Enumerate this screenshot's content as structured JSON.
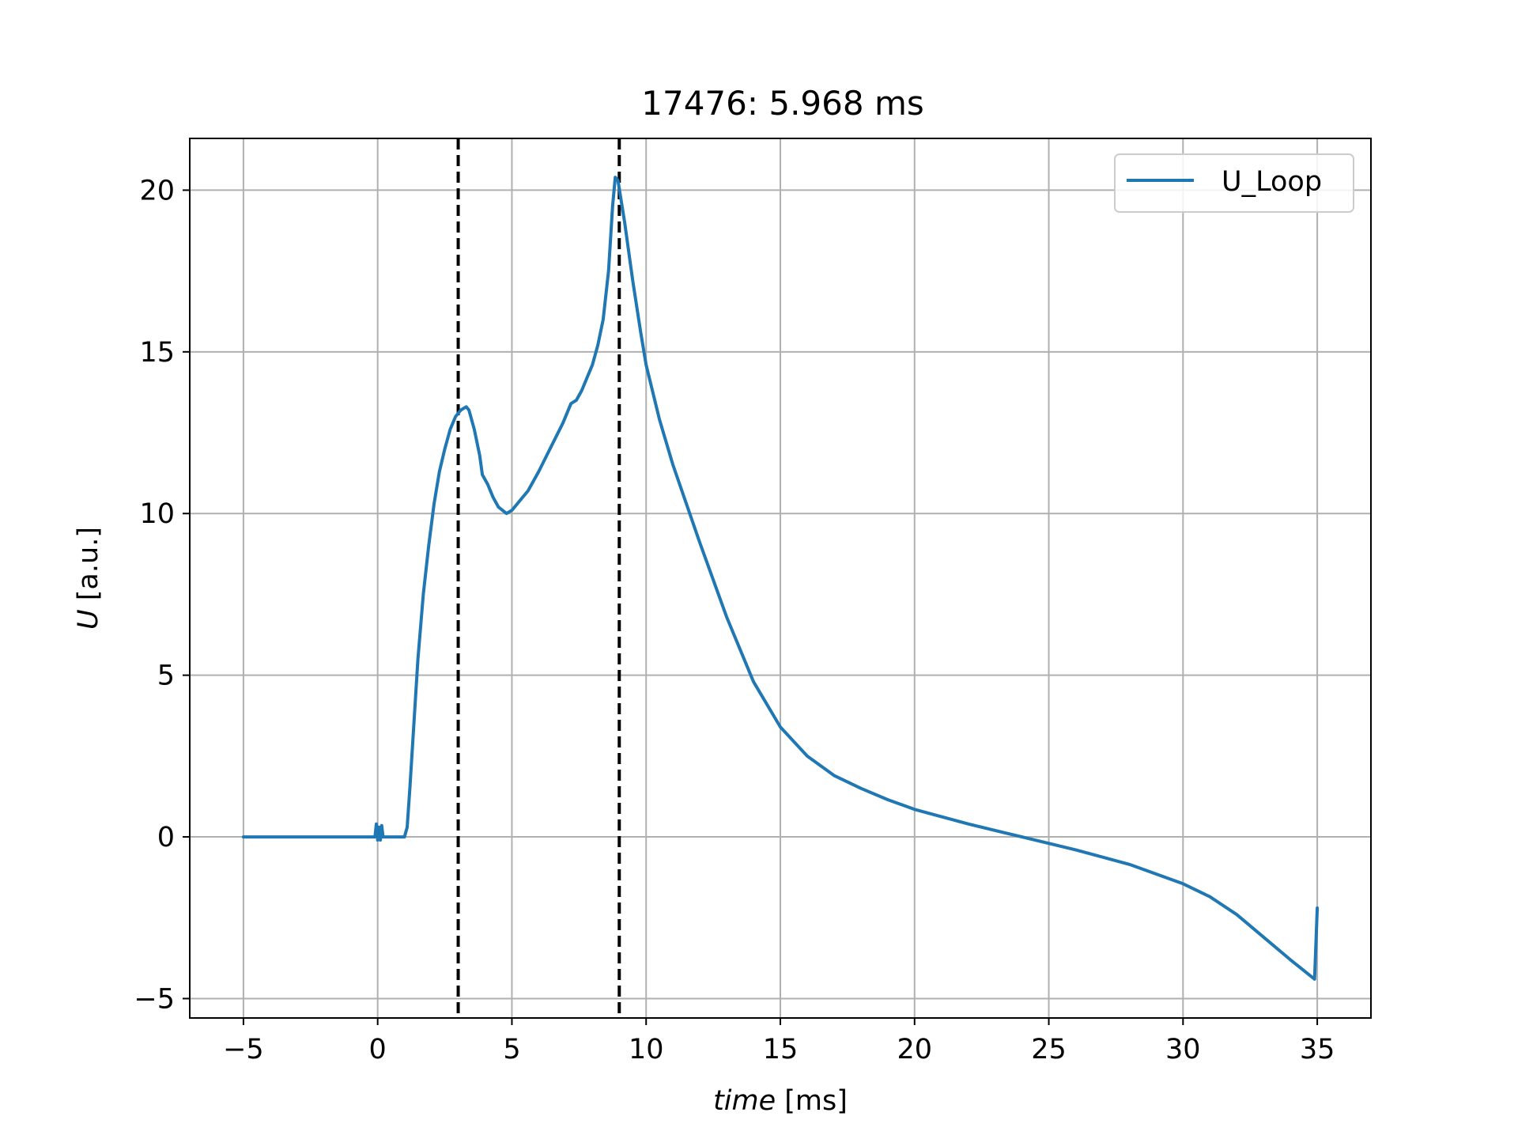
{
  "chart_data": {
    "type": "line",
    "title": "17476: 5.968 ms",
    "xlabel_italic": "time",
    "xlabel_unit": "[ms]",
    "ylabel_italic": "U",
    "ylabel_unit": "[a.u.]",
    "xlim": [
      -7,
      37
    ],
    "ylim": [
      -5.6,
      21.6
    ],
    "x_ticks": [
      -5,
      0,
      5,
      10,
      15,
      20,
      25,
      30,
      35
    ],
    "x_tick_labels": [
      "−5",
      "0",
      "5",
      "10",
      "15",
      "20",
      "25",
      "30",
      "35"
    ],
    "y_ticks": [
      -5,
      0,
      5,
      10,
      15,
      20
    ],
    "y_tick_labels": [
      "−5",
      "0",
      "5",
      "10",
      "15",
      "20"
    ],
    "grid": true,
    "legend_position": "top-right",
    "vlines": [
      3.0,
      9.0
    ],
    "series": [
      {
        "name": "U_Loop",
        "color": "#1f77b4",
        "points": [
          [
            -5,
            0
          ],
          [
            -1,
            0
          ],
          [
            -0.1,
            0
          ],
          [
            -0.05,
            0.4
          ],
          [
            0,
            -0.1
          ],
          [
            0.05,
            0.3
          ],
          [
            0.1,
            -0.1
          ],
          [
            0.15,
            0.35
          ],
          [
            0.2,
            0
          ],
          [
            0.5,
            0
          ],
          [
            1.0,
            0
          ],
          [
            1.1,
            0.3
          ],
          [
            1.2,
            1.5
          ],
          [
            1.35,
            3.5
          ],
          [
            1.5,
            5.5
          ],
          [
            1.7,
            7.5
          ],
          [
            1.9,
            9.0
          ],
          [
            2.1,
            10.3
          ],
          [
            2.3,
            11.3
          ],
          [
            2.5,
            12.0
          ],
          [
            2.7,
            12.6
          ],
          [
            2.9,
            13.0
          ],
          [
            3.1,
            13.2
          ],
          [
            3.3,
            13.3
          ],
          [
            3.4,
            13.2
          ],
          [
            3.6,
            12.6
          ],
          [
            3.8,
            11.8
          ],
          [
            3.9,
            11.2
          ],
          [
            4.1,
            10.9
          ],
          [
            4.3,
            10.5
          ],
          [
            4.5,
            10.2
          ],
          [
            4.8,
            10.0
          ],
          [
            5.0,
            10.1
          ],
          [
            5.3,
            10.4
          ],
          [
            5.6,
            10.7
          ],
          [
            5.8,
            11.0
          ],
          [
            6.0,
            11.3
          ],
          [
            6.3,
            11.8
          ],
          [
            6.6,
            12.3
          ],
          [
            6.9,
            12.8
          ],
          [
            7.2,
            13.4
          ],
          [
            7.4,
            13.5
          ],
          [
            7.6,
            13.8
          ],
          [
            7.8,
            14.2
          ],
          [
            8.0,
            14.6
          ],
          [
            8.2,
            15.2
          ],
          [
            8.4,
            16.0
          ],
          [
            8.6,
            17.5
          ],
          [
            8.75,
            19.5
          ],
          [
            8.85,
            20.4
          ],
          [
            8.95,
            20.3
          ],
          [
            9.2,
            19.0
          ],
          [
            9.5,
            17.2
          ],
          [
            9.8,
            15.6
          ],
          [
            10.0,
            14.6
          ],
          [
            10.5,
            12.9
          ],
          [
            11.0,
            11.5
          ],
          [
            12.0,
            9.1
          ],
          [
            13.0,
            6.8
          ],
          [
            14.0,
            4.8
          ],
          [
            15.0,
            3.4
          ],
          [
            16.0,
            2.5
          ],
          [
            17.0,
            1.9
          ],
          [
            18.0,
            1.5
          ],
          [
            19.0,
            1.15
          ],
          [
            20.0,
            0.85
          ],
          [
            22.0,
            0.4
          ],
          [
            24.0,
            0.0
          ],
          [
            26.0,
            -0.4
          ],
          [
            28.0,
            -0.85
          ],
          [
            30.0,
            -1.45
          ],
          [
            31.0,
            -1.85
          ],
          [
            32.0,
            -2.4
          ],
          [
            33.0,
            -3.1
          ],
          [
            34.0,
            -3.8
          ],
          [
            34.9,
            -4.4
          ],
          [
            35.0,
            -2.2
          ]
        ]
      }
    ]
  }
}
